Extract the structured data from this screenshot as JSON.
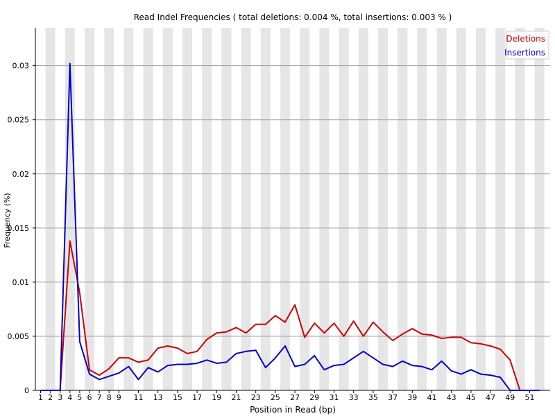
{
  "chart_data": {
    "type": "line",
    "title": "Read Indel Frequencies ( total deletions: 0.004 %, total insertions: 0.003 % )",
    "xlabel": "Position in Read (bp)",
    "ylabel": "Frequency (%)",
    "ylim": [
      0,
      0.0335
    ],
    "x": [
      1,
      2,
      3,
      4,
      5,
      6,
      7,
      8,
      9,
      10,
      11,
      12,
      13,
      14,
      15,
      16,
      17,
      18,
      19,
      20,
      21,
      22,
      23,
      24,
      25,
      26,
      27,
      28,
      29,
      30,
      31,
      32,
      33,
      34,
      35,
      36,
      37,
      38,
      39,
      40,
      41,
      42,
      43,
      44,
      45,
      46,
      47,
      48,
      49,
      50,
      51,
      52
    ],
    "x_tick_labels": [
      "1",
      "2",
      "3",
      "4",
      "5",
      "6",
      "7",
      "8",
      "9",
      "11",
      "13",
      "15",
      "17",
      "19",
      "21",
      "23",
      "25",
      "27",
      "29",
      "31",
      "33",
      "35",
      "37",
      "39",
      "41",
      "43",
      "45",
      "47",
      "49",
      "51"
    ],
    "x_tick_positions": [
      1,
      2,
      3,
      4,
      5,
      6,
      7,
      8,
      9,
      11,
      13,
      15,
      17,
      19,
      21,
      23,
      25,
      27,
      29,
      31,
      33,
      35,
      37,
      39,
      41,
      43,
      45,
      47,
      49,
      51
    ],
    "y_ticks": [
      0,
      0.005,
      0.01,
      0.015,
      0.02,
      0.025,
      0.03
    ],
    "y_tick_labels": [
      "0",
      "0.005",
      "0.01",
      "0.015",
      "0.02",
      "0.025",
      "0.03"
    ],
    "series": [
      {
        "name": "Deletions",
        "color": "#cc0000",
        "values": [
          0,
          0,
          0,
          0.0138,
          0.009,
          0.0019,
          0.0014,
          0.002,
          0.003,
          0.003,
          0.0026,
          0.0028,
          0.0039,
          0.0041,
          0.0039,
          0.0034,
          0.0036,
          0.0047,
          0.0053,
          0.0054,
          0.0058,
          0.0053,
          0.0061,
          0.0061,
          0.0069,
          0.0063,
          0.0079,
          0.0049,
          0.0062,
          0.0053,
          0.0062,
          0.005,
          0.0064,
          0.005,
          0.0063,
          0.0054,
          0.0046,
          0.0052,
          0.0057,
          0.0052,
          0.0051,
          0.0048,
          0.0049,
          0.0049,
          0.0044,
          0.0043,
          0.0041,
          0.0038,
          0.0028,
          0,
          0,
          0
        ]
      },
      {
        "name": "Insertions",
        "color": "#0000cc",
        "values": [
          0,
          0,
          0,
          0.0302,
          0.0045,
          0.0015,
          0.001,
          0.0013,
          0.0016,
          0.0022,
          0.001,
          0.0021,
          0.0017,
          0.0023,
          0.0024,
          0.0024,
          0.0025,
          0.0028,
          0.0025,
          0.0026,
          0.0034,
          0.0036,
          0.0037,
          0.0021,
          0.003,
          0.0041,
          0.0022,
          0.0024,
          0.0032,
          0.0019,
          0.0023,
          0.0024,
          0.003,
          0.0036,
          0.003,
          0.0024,
          0.0022,
          0.0027,
          0.0023,
          0.0022,
          0.0019,
          0.0027,
          0.0018,
          0.0015,
          0.0019,
          0.0015,
          0.0014,
          0.0012,
          0,
          0,
          0,
          0
        ]
      }
    ],
    "grid": true,
    "legend": "top-right"
  }
}
